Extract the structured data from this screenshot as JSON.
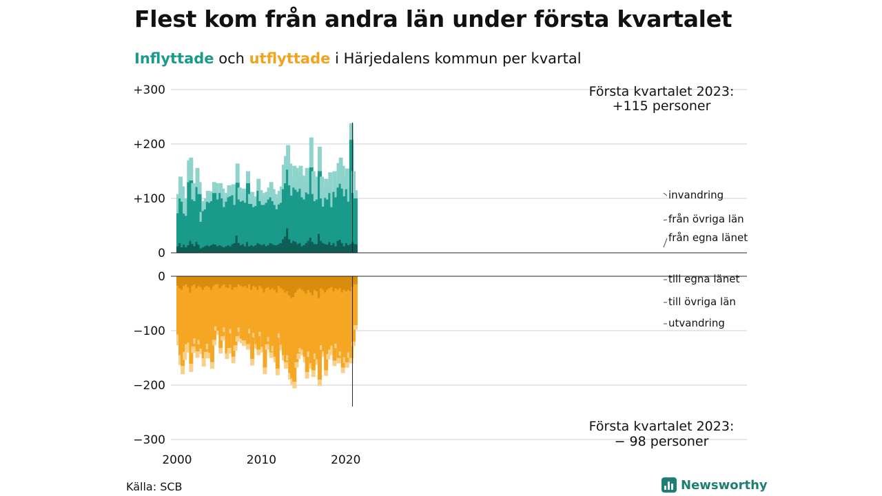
{
  "header": {
    "title": "Flest kom från andra län under första kvartalet",
    "subtitle_in": "Inflyttade",
    "subtitle_and": " och ",
    "subtitle_out": "utflyttade",
    "subtitle_rest": " i Härjedalens kommun per kvartal"
  },
  "footer": {
    "source": "Källa: SCB",
    "brand": "Newsworthy"
  },
  "colors": {
    "in_own": "#0f5e56",
    "in_other": "#1a9a8a",
    "in_abroad": "#8ed4cc",
    "out_own": "#d98c0d",
    "out_other": "#f5a623",
    "out_abroad": "#f8d08a",
    "grid": "#dddddd",
    "text": "#111111"
  },
  "chart_data": {
    "type": "bar",
    "stacked": true,
    "period": "quarterly",
    "x_start": "2000 Q1",
    "x_end": "2023 Q1",
    "y_ticks": [
      "+300",
      "+200",
      "+100",
      "0",
      "0",
      "−100",
      "−200",
      "−300"
    ],
    "ylim_in": [
      0,
      300
    ],
    "ylim_out": [
      -300,
      0
    ],
    "x_ticks": [
      "2000",
      "2010",
      "2020"
    ],
    "legend_in": [
      "invandring",
      "från övriga län",
      "från egna länet"
    ],
    "legend_out": [
      "till egna länet",
      "till övriga län",
      "utvandring"
    ],
    "annotation_in": [
      "Första kvartalet 2023:",
      "+115 personer"
    ],
    "annotation_out": [
      "Första kvartalet 2023:",
      "− 98 personer"
    ],
    "inflow": {
      "total": [
        108,
        140,
        122,
        100,
        98,
        170,
        175,
        128,
        120,
        156,
        130,
        75,
        95,
        100,
        114,
        110,
        113,
        130,
        128,
        110,
        128,
        118,
        100,
        110,
        124,
        122,
        126,
        110,
        164,
        120,
        112,
        118,
        110,
        150,
        108,
        112,
        100,
        104,
        136,
        115,
        106,
        110,
        112,
        120,
        130,
        117,
        108,
        100,
        114,
        122,
        162,
        178,
        198,
        164,
        140,
        160,
        156,
        150,
        160,
        142,
        138,
        156,
        150,
        212,
        150,
        135,
        140,
        195,
        140,
        120,
        136,
        130,
        148,
        112,
        150,
        132,
        165,
        175,
        160,
        142,
        155,
        122,
        238,
        150,
        115
      ],
      "from_own_county": [
        12,
        18,
        10,
        15,
        10,
        14,
        22,
        16,
        12,
        20,
        15,
        8,
        10,
        12,
        14,
        12,
        14,
        16,
        15,
        12,
        14,
        12,
        10,
        12,
        14,
        12,
        16,
        18,
        32,
        18,
        14,
        16,
        12,
        20,
        12,
        14,
        12,
        14,
        18,
        16,
        14,
        16,
        12,
        14,
        18,
        16,
        14,
        14,
        16,
        18,
        25,
        30,
        45,
        25,
        18,
        22,
        20,
        16,
        18,
        12,
        14,
        18,
        22,
        28,
        20,
        16,
        16,
        35,
        22,
        18,
        16,
        15,
        20,
        14,
        18,
        12,
        22,
        24,
        18,
        12,
        18,
        14,
        16,
        20,
        16
      ],
      "abroad": [
        35,
        40,
        28,
        28,
        30,
        40,
        42,
        30,
        25,
        35,
        22,
        18,
        18,
        20,
        20,
        18,
        18,
        20,
        18,
        12,
        18,
        18,
        16,
        16,
        22,
        18,
        20,
        22,
        35,
        22,
        18,
        22,
        18,
        22,
        18,
        22,
        16,
        18,
        22,
        20,
        18,
        22,
        20,
        22,
        28,
        22,
        20,
        20,
        25,
        30,
        45,
        50,
        45,
        40,
        35,
        40,
        40,
        38,
        42,
        40,
        40,
        45,
        42,
        55,
        42,
        40,
        42,
        45,
        40,
        35,
        35,
        32,
        38,
        28,
        38,
        30,
        45,
        48,
        42,
        38,
        38,
        28,
        30,
        40,
        15
      ]
    },
    "outflow": {
      "total": [
        -127,
        -163,
        -180,
        -154,
        -140,
        -134,
        -176,
        -141,
        -124,
        -150,
        -125,
        -143,
        -166,
        -151,
        -134,
        -151,
        -170,
        -127,
        -100,
        -108,
        -142,
        -118,
        -102,
        -152,
        -142,
        -105,
        -160,
        -137,
        -120,
        -102,
        -123,
        -128,
        -128,
        -135,
        -105,
        -164,
        -112,
        -133,
        -145,
        -110,
        -140,
        -180,
        -135,
        -120,
        -150,
        -138,
        -158,
        -182,
        -113,
        -136,
        -155,
        -170,
        -155,
        -190,
        -200,
        -206,
        -168,
        -152,
        -140,
        -145,
        -158,
        -188,
        -148,
        -170,
        -185,
        -152,
        -163,
        -202,
        -135,
        -148,
        -183,
        -153,
        -145,
        -136,
        -165,
        -132,
        -160,
        -146,
        -178,
        -159,
        -168,
        -150,
        -160,
        -128,
        -98
      ],
      "to_own_county": [
        -18,
        -22,
        -25,
        -18,
        -15,
        -20,
        -30,
        -18,
        -15,
        -22,
        -18,
        -20,
        -25,
        -20,
        -18,
        -20,
        -25,
        -18,
        -15,
        -15,
        -22,
        -18,
        -15,
        -20,
        -22,
        -15,
        -25,
        -20,
        -20,
        -15,
        -18,
        -20,
        -18,
        -22,
        -15,
        -25,
        -18,
        -20,
        -25,
        -18,
        -22,
        -30,
        -22,
        -20,
        -25,
        -22,
        -25,
        -30,
        -18,
        -22,
        -25,
        -30,
        -28,
        -35,
        -40,
        -38,
        -30,
        -25,
        -22,
        -25,
        -28,
        -32,
        -25,
        -30,
        -35,
        -25,
        -28,
        -40,
        -22,
        -25,
        -30,
        -25,
        -22,
        -20,
        -28,
        -22,
        -25,
        -22,
        -30,
        -25,
        -28,
        -25,
        -28,
        -20,
        -15
      ],
      "abroad": [
        -20,
        -18,
        -15,
        -15,
        -15,
        -12,
        -15,
        -12,
        -10,
        -12,
        -8,
        -10,
        -15,
        -12,
        -10,
        -10,
        -12,
        -10,
        -8,
        -8,
        -10,
        -8,
        -8,
        -10,
        -10,
        -8,
        -12,
        -10,
        -10,
        -8,
        -8,
        -10,
        -10,
        -10,
        -8,
        -12,
        -8,
        -8,
        -10,
        -8,
        -10,
        -12,
        -10,
        -8,
        -10,
        -10,
        -10,
        -12,
        -8,
        -10,
        -10,
        -12,
        -10,
        -12,
        -12,
        -12,
        -10,
        -10,
        -8,
        -10,
        -10,
        -12,
        -10,
        -10,
        -12,
        -10,
        -10,
        -12,
        -8,
        -10,
        -10,
        -10,
        -10,
        -8,
        -10,
        -8,
        -10,
        -8,
        -10,
        -10,
        -10,
        -10,
        -10,
        -8,
        -8
      ]
    }
  }
}
